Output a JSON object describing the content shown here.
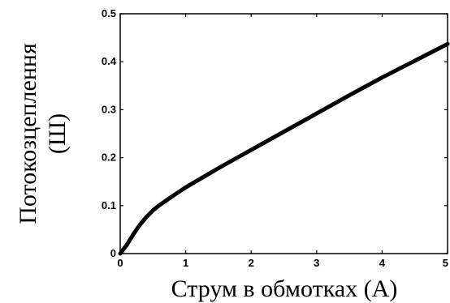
{
  "chart_data": {
    "type": "line",
    "xlabel": "Струм в обмотках (А)",
    "ylabel_line1": "Потокозцеплення",
    "ylabel_line2": "(Ш)",
    "xlim": [
      0,
      5
    ],
    "ylim": [
      0,
      0.5
    ],
    "x_ticks": [
      "0",
      "1",
      "2",
      "3",
      "4",
      "5"
    ],
    "y_ticks": [
      "0",
      "0.1",
      "0.2",
      "0.3",
      "0.4",
      "0.5"
    ],
    "series": [
      {
        "x": [
          0,
          0.1,
          0.2,
          0.3,
          0.4,
          0.5,
          0.6,
          0.8,
          1.0,
          1.2,
          1.5,
          1.8,
          2.0,
          2.5,
          3.0,
          3.5,
          4.0,
          4.5,
          5.0
        ],
        "y": [
          0,
          0.018,
          0.04,
          0.06,
          0.076,
          0.09,
          0.101,
          0.12,
          0.138,
          0.154,
          0.178,
          0.201,
          0.216,
          0.254,
          0.292,
          0.33,
          0.367,
          0.402,
          0.437
        ],
        "color": "#000000"
      }
    ],
    "grid": false
  }
}
